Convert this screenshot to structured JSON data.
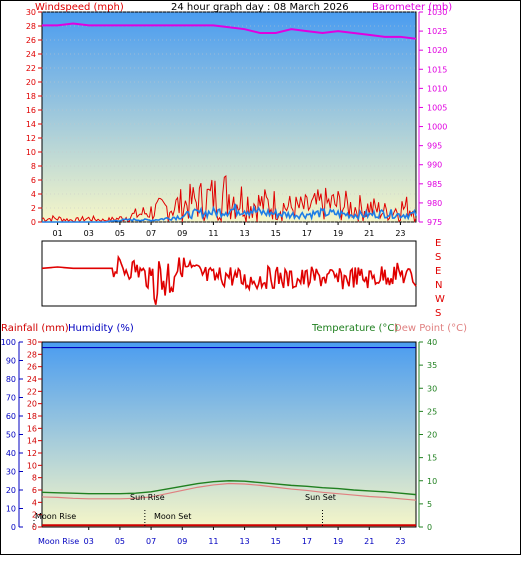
{
  "header": {
    "title": "24 hour graph day : 08 March 2026",
    "left_label": "Windspeed (mph)",
    "right_label": "Barometer (mb)",
    "compass": [
      "E",
      "S",
      "E",
      "N",
      "W",
      "S"
    ]
  },
  "bottom_labels": {
    "rain": "Rainfall (mm)",
    "humidity": "Humidity (%)",
    "temperature": "Temperature (°C)",
    "dew_point": "Dew Point (°C)",
    "sun_rise": "Sun Rise",
    "sun_set": "Sun Set",
    "moon_rise": "Moon Rise",
    "moon_set": "Moon Set",
    "moon_rise_axis": "Moon Rise"
  },
  "colors": {
    "wind": "#e00000",
    "gust": "#e00000",
    "avg_wind": "#1e7de6",
    "barometer": "#e000e0",
    "direction": "#e00000",
    "humidity": "#0000c0",
    "temperature": "#208020",
    "dew_point": "#e08080",
    "rain": "#d00000",
    "sky_top": "#4a9cf0",
    "sky_bottom": "#f6f6c8"
  },
  "chart_data": [
    {
      "type": "line",
      "name": "wind-barometer",
      "x_ticks": [
        "01",
        "03",
        "05",
        "07",
        "09",
        "11",
        "13",
        "15",
        "17",
        "19",
        "21",
        "23"
      ],
      "ylim_left": [
        0,
        30
      ],
      "y_ticks_left": [
        0,
        2,
        4,
        6,
        8,
        10,
        12,
        14,
        16,
        18,
        20,
        22,
        24,
        26,
        28,
        30
      ],
      "ylim_right": [
        975,
        1030
      ],
      "y_ticks_right": [
        975,
        980,
        985,
        990,
        995,
        1000,
        1005,
        1010,
        1015,
        1020,
        1025,
        1030
      ],
      "barometer_hourly": [
        1026.5,
        1026.5,
        1027,
        1026.5,
        1026.5,
        1026.5,
        1026.5,
        1026.5,
        1026.5,
        1026.5,
        1026.5,
        1026.5,
        1026,
        1025.5,
        1024.5,
        1024.5,
        1025.5,
        1025,
        1024.5,
        1025,
        1024.5,
        1024,
        1023.5,
        1023.5,
        1023
      ],
      "avg_wind_hourly": [
        0,
        0,
        0,
        0,
        0,
        0.3,
        0.4,
        0.3,
        0.6,
        1,
        1.5,
        1.6,
        2,
        2.2,
        1.6,
        1.4,
        1.2,
        1.3,
        1.5,
        1.4,
        1.2,
        1.2,
        1.5,
        1.2,
        1.3
      ],
      "gust_hourly": [
        1,
        1,
        0.5,
        1,
        0.5,
        1,
        2,
        3,
        4,
        5,
        6,
        7,
        8,
        6,
        5,
        5,
        4,
        4,
        5,
        5,
        4,
        4,
        3,
        4,
        4
      ]
    },
    {
      "type": "line",
      "name": "wind-direction",
      "y_ticks_right": [
        "E",
        "S",
        "E",
        "N",
        "W",
        "S"
      ],
      "direction_hourly": [
        0.42,
        0.4,
        0.42,
        0.42,
        0.42,
        0.42,
        0.42,
        0.6,
        0.55,
        0.38,
        0.5,
        0.58,
        0.52,
        0.62,
        0.58,
        0.55,
        0.6,
        0.58,
        0.55,
        0.6,
        0.55,
        0.58,
        0.52,
        0.5,
        0.6
      ]
    },
    {
      "type": "line",
      "name": "temperature-humidity-rain",
      "x_ticks": [
        "03",
        "05",
        "07",
        "09",
        "11",
        "13",
        "15",
        "17",
        "19",
        "21",
        "23"
      ],
      "y_ticks_humidity": [
        0,
        10,
        20,
        30,
        40,
        50,
        60,
        70,
        80,
        90,
        100
      ],
      "y_ticks_rain": [
        0,
        2,
        4,
        6,
        8,
        10,
        12,
        14,
        16,
        18,
        20,
        22,
        24,
        26,
        28,
        30
      ],
      "y_ticks_temperature": [
        0,
        5,
        10,
        15,
        20,
        25,
        30,
        35,
        40
      ],
      "humidity_hourly": [
        97,
        97,
        97,
        97,
        97,
        97,
        97,
        97,
        97,
        97,
        97,
        97,
        97,
        97,
        97,
        97,
        97,
        97,
        97,
        97,
        97,
        97,
        97,
        97,
        97
      ],
      "temperature_hourly": [
        7.5,
        7.4,
        7.3,
        7.2,
        7.2,
        7.2,
        7.3,
        7.6,
        8.2,
        8.8,
        9.4,
        9.8,
        10,
        9.9,
        9.6,
        9.3,
        9.0,
        8.8,
        8.5,
        8.3,
        8.0,
        7.8,
        7.6,
        7.3,
        7.0
      ],
      "dew_point_hourly": [
        6.5,
        6.4,
        6.2,
        6.1,
        6.1,
        6.1,
        6.2,
        6.5,
        7.2,
        7.9,
        8.6,
        9.1,
        9.4,
        9.3,
        9.0,
        8.6,
        8.2,
        7.9,
        7.5,
        7.2,
        6.9,
        6.6,
        6.4,
        6.1,
        5.8
      ],
      "rain_hourly": [
        0.2,
        0.2,
        0.2,
        0.2,
        0.2,
        0.2,
        0.2,
        0.2,
        0.2,
        0.2,
        0.2,
        0.2,
        0.2,
        0.2,
        0.2,
        0.2,
        0.2,
        0.2,
        0.2,
        0.2,
        0.2,
        0.2,
        0.2,
        0.2,
        0.2
      ],
      "event_hours": {
        "sun_rise": 6.6,
        "sun_set": 18.0
      }
    }
  ]
}
